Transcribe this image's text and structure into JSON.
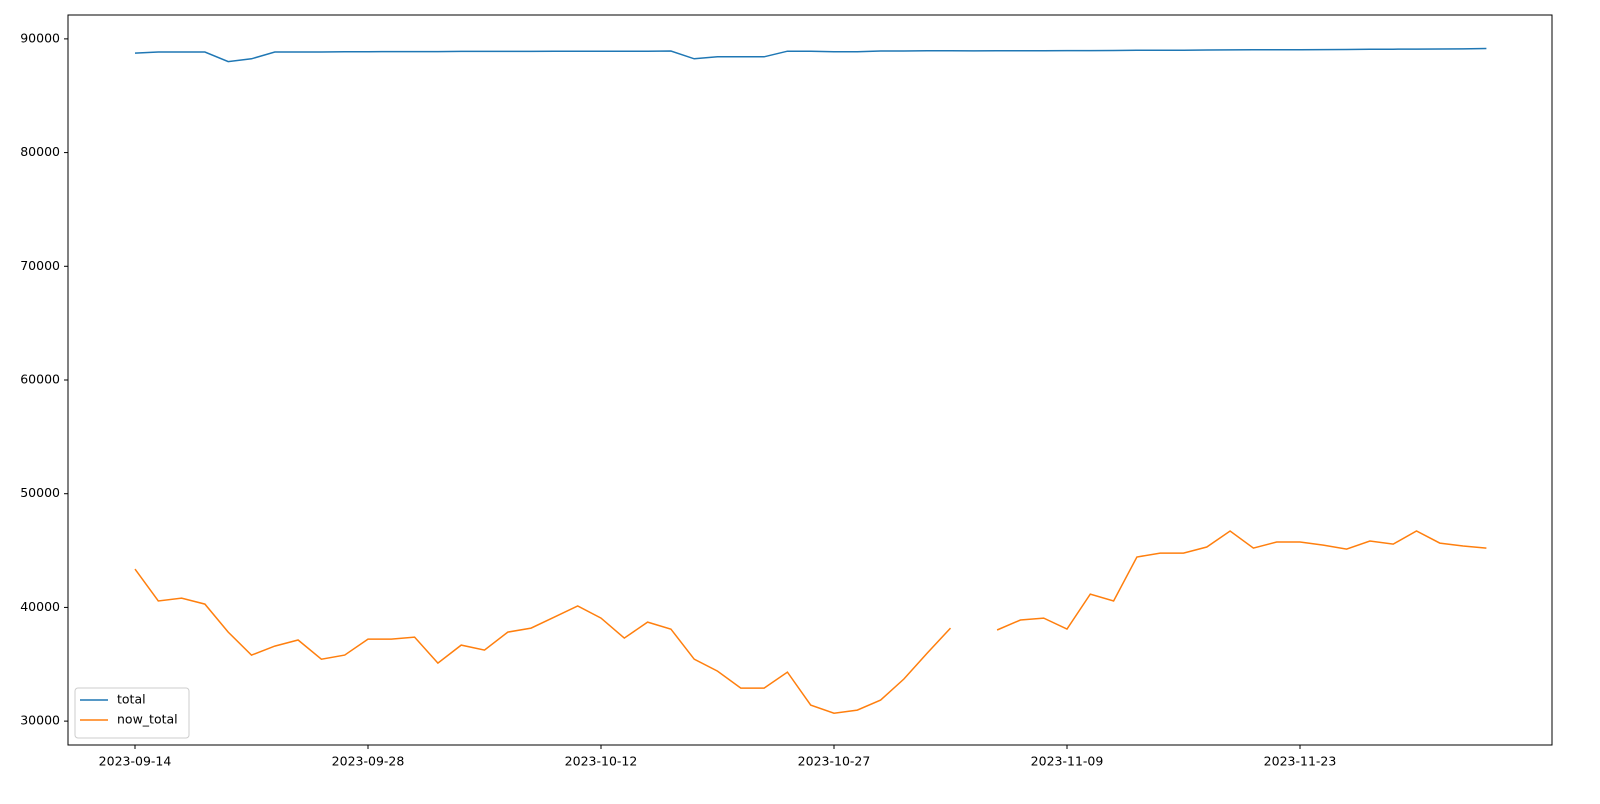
{
  "chart_data": {
    "type": "line",
    "categories": [
      "2023-09-14",
      null,
      null,
      null,
      null,
      null,
      null,
      null,
      null,
      null,
      "2023-09-28",
      null,
      null,
      null,
      null,
      null,
      null,
      null,
      null,
      null,
      "2023-10-12",
      null,
      null,
      null,
      null,
      null,
      null,
      null,
      null,
      null,
      "2023-10-27",
      null,
      null,
      null,
      null,
      null,
      null,
      null,
      null,
      null,
      "2023-11-09",
      null,
      null,
      null,
      null,
      null,
      null,
      null,
      null,
      null,
      "2023-11-23",
      null,
      null,
      null,
      null,
      null,
      null,
      null,
      null
    ],
    "series": [
      {
        "name": "total",
        "color": "#1f77b4",
        "values": [
          88750,
          88850,
          88850,
          88850,
          88000,
          88250,
          88850,
          88850,
          88850,
          88870,
          88870,
          88880,
          88880,
          88880,
          88900,
          88900,
          88900,
          88900,
          88910,
          88910,
          88920,
          88920,
          88920,
          88930,
          88250,
          88420,
          88420,
          88420,
          88920,
          88920,
          88870,
          88870,
          88930,
          88930,
          88950,
          88950,
          88940,
          88950,
          88960,
          88960,
          88970,
          88970,
          88980,
          89000,
          89000,
          89000,
          89020,
          89030,
          89040,
          89040,
          89050,
          89060,
          89070,
          89080,
          89090,
          89100,
          89110,
          89120,
          89150
        ]
      },
      {
        "name": "now_total",
        "color": "#ff7f0e",
        "values": [
          43370,
          40560,
          40820,
          40290,
          37830,
          35810,
          36600,
          37130,
          35450,
          35810,
          37210,
          37210,
          37390,
          35100,
          36690,
          36250,
          37830,
          38180,
          39150,
          40120,
          39060,
          37300,
          38710,
          38090,
          35450,
          34400,
          32900,
          32900,
          34310,
          31410,
          30700,
          30970,
          31850,
          33700,
          35980,
          38180,
          null,
          38010,
          38890,
          39060,
          38090,
          41170,
          40560,
          44430,
          44780,
          44780,
          45310,
          46720,
          45220,
          45750,
          45750,
          45480,
          45130,
          45840,
          45570,
          46720,
          45660,
          45400,
          45220
        ]
      }
    ],
    "ylim": [
      27900,
      92100
    ],
    "yticks": [
      30000,
      40000,
      50000,
      60000,
      70000,
      80000,
      90000
    ],
    "grid": false,
    "legend": "lower left"
  }
}
